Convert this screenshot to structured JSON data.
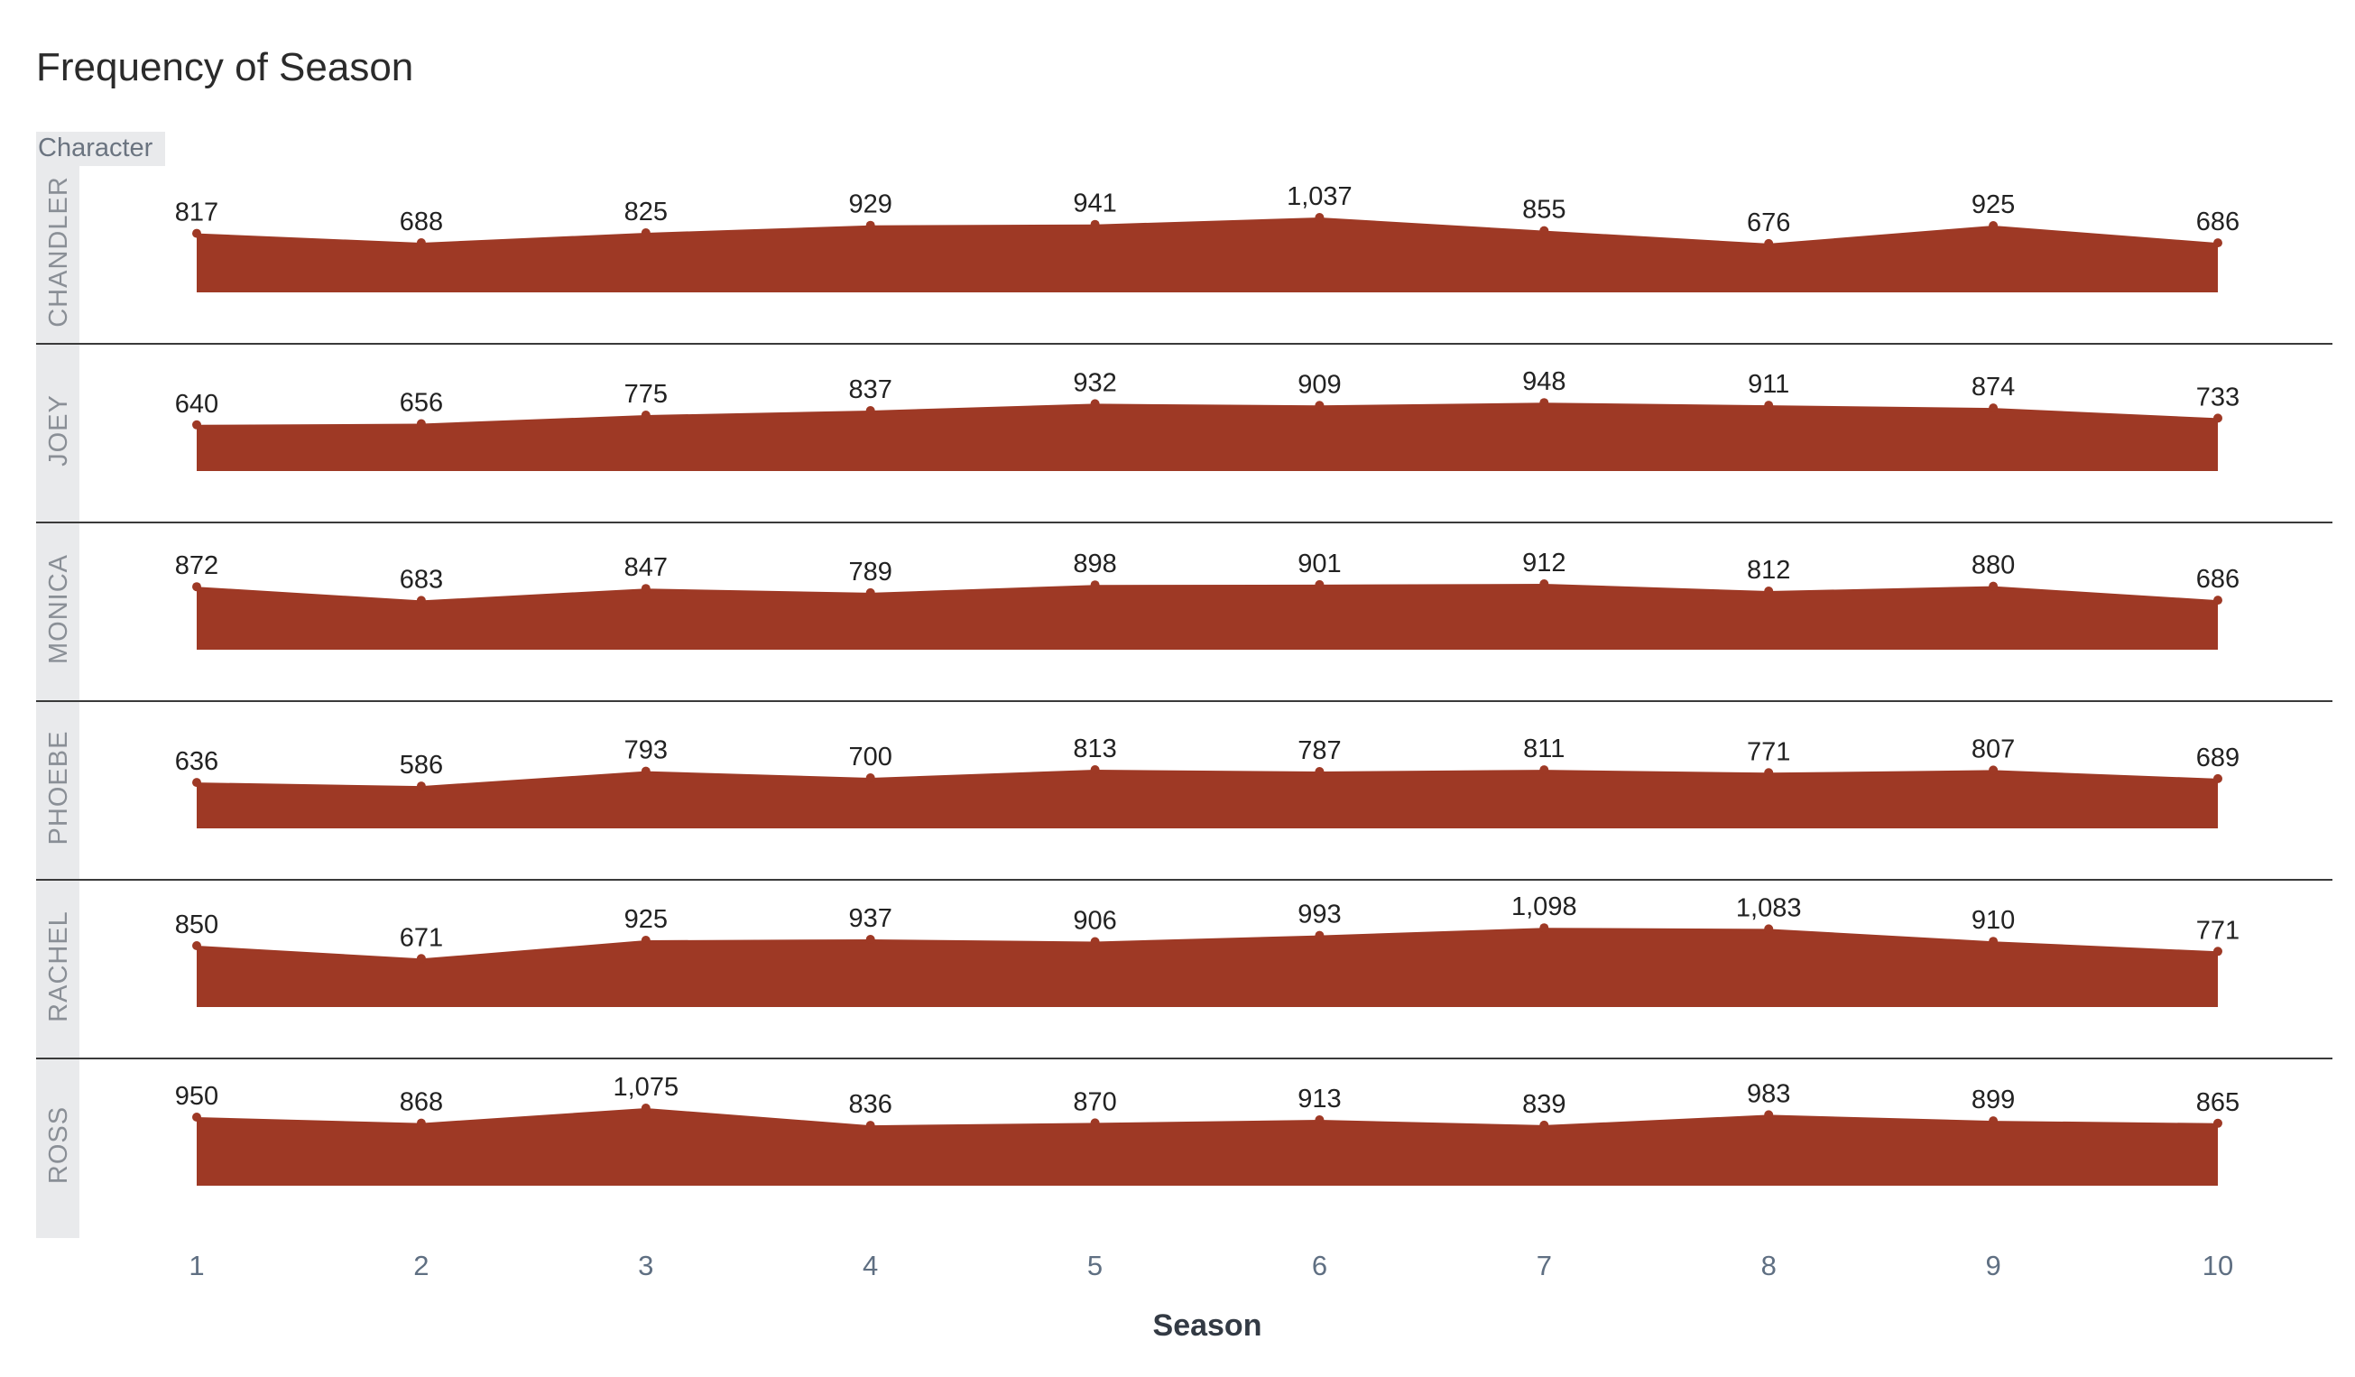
{
  "chart_data": {
    "type": "area",
    "title": "Frequency of Season",
    "facet_header": "Character",
    "xlabel": "Season",
    "ylabel": "",
    "x": [
      "1",
      "2",
      "3",
      "4",
      "5",
      "6",
      "7",
      "8",
      "9",
      "10"
    ],
    "ylim": [
      0,
      1098
    ],
    "grid": false,
    "legend": "none",
    "colors": {
      "area": "#9e3925",
      "marker": "#9e3925",
      "panel_band": "#e9eaec",
      "divider": "#3a3a3a"
    },
    "panels": [
      {
        "name": "CHANDLER",
        "values": [
          817,
          688,
          825,
          929,
          941,
          1037,
          855,
          676,
          925,
          686
        ],
        "labels": [
          "817",
          "688",
          "825",
          "929",
          "941",
          "1,037",
          "855",
          "676",
          "925",
          "686"
        ]
      },
      {
        "name": "JOEY",
        "values": [
          640,
          656,
          775,
          837,
          932,
          909,
          948,
          911,
          874,
          733
        ],
        "labels": [
          "640",
          "656",
          "775",
          "837",
          "932",
          "909",
          "948",
          "911",
          "874",
          "733"
        ]
      },
      {
        "name": "MONICA",
        "values": [
          872,
          683,
          847,
          789,
          898,
          901,
          912,
          812,
          880,
          686
        ],
        "labels": [
          "872",
          "683",
          "847",
          "789",
          "898",
          "901",
          "912",
          "812",
          "880",
          "686"
        ]
      },
      {
        "name": "PHOEBE",
        "values": [
          636,
          586,
          793,
          700,
          813,
          787,
          811,
          771,
          807,
          689
        ],
        "labels": [
          "636",
          "586",
          "793",
          "700",
          "813",
          "787",
          "811",
          "771",
          "807",
          "689"
        ]
      },
      {
        "name": "RACHEL",
        "values": [
          850,
          671,
          925,
          937,
          906,
          993,
          1098,
          1083,
          910,
          771
        ],
        "labels": [
          "850",
          "671",
          "925",
          "937",
          "906",
          "993",
          "1,098",
          "1,083",
          "910",
          "771"
        ]
      },
      {
        "name": "ROSS",
        "values": [
          950,
          868,
          1075,
          836,
          870,
          913,
          839,
          983,
          899,
          865
        ],
        "labels": [
          "950",
          "868",
          "1,075",
          "836",
          "870",
          "913",
          "839",
          "983",
          "899",
          "865"
        ]
      }
    ]
  }
}
